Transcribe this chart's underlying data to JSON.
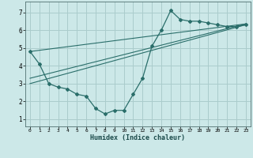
{
  "xlabel": "Humidex (Indice chaleur)",
  "background_color": "#cce8e8",
  "grid_color": "#aacccc",
  "line_color": "#2a6e6a",
  "xlim": [
    -0.5,
    23.5
  ],
  "ylim": [
    0.6,
    7.6
  ],
  "xticks": [
    0,
    1,
    2,
    3,
    4,
    5,
    6,
    7,
    8,
    9,
    10,
    11,
    12,
    13,
    14,
    15,
    16,
    17,
    18,
    19,
    20,
    21,
    22,
    23
  ],
  "yticks": [
    1,
    2,
    3,
    4,
    5,
    6,
    7
  ],
  "line1_x": [
    0,
    1,
    2,
    3,
    4,
    5,
    6,
    7,
    8,
    9,
    10,
    11,
    12,
    13,
    14,
    15,
    16,
    17,
    18,
    19,
    20,
    21,
    22,
    23
  ],
  "line1_y": [
    4.8,
    4.1,
    3.0,
    2.8,
    2.7,
    2.4,
    2.3,
    1.6,
    1.3,
    1.5,
    1.5,
    2.4,
    3.3,
    5.1,
    6.0,
    7.1,
    6.6,
    6.5,
    6.5,
    6.4,
    6.3,
    6.2,
    6.2,
    6.3
  ],
  "line2_x": [
    0,
    23
  ],
  "line2_y": [
    3.0,
    6.3
  ],
  "line3_x": [
    0,
    23
  ],
  "line3_y": [
    3.3,
    6.35
  ],
  "line4_x": [
    0,
    23
  ],
  "line4_y": [
    4.8,
    6.35
  ]
}
